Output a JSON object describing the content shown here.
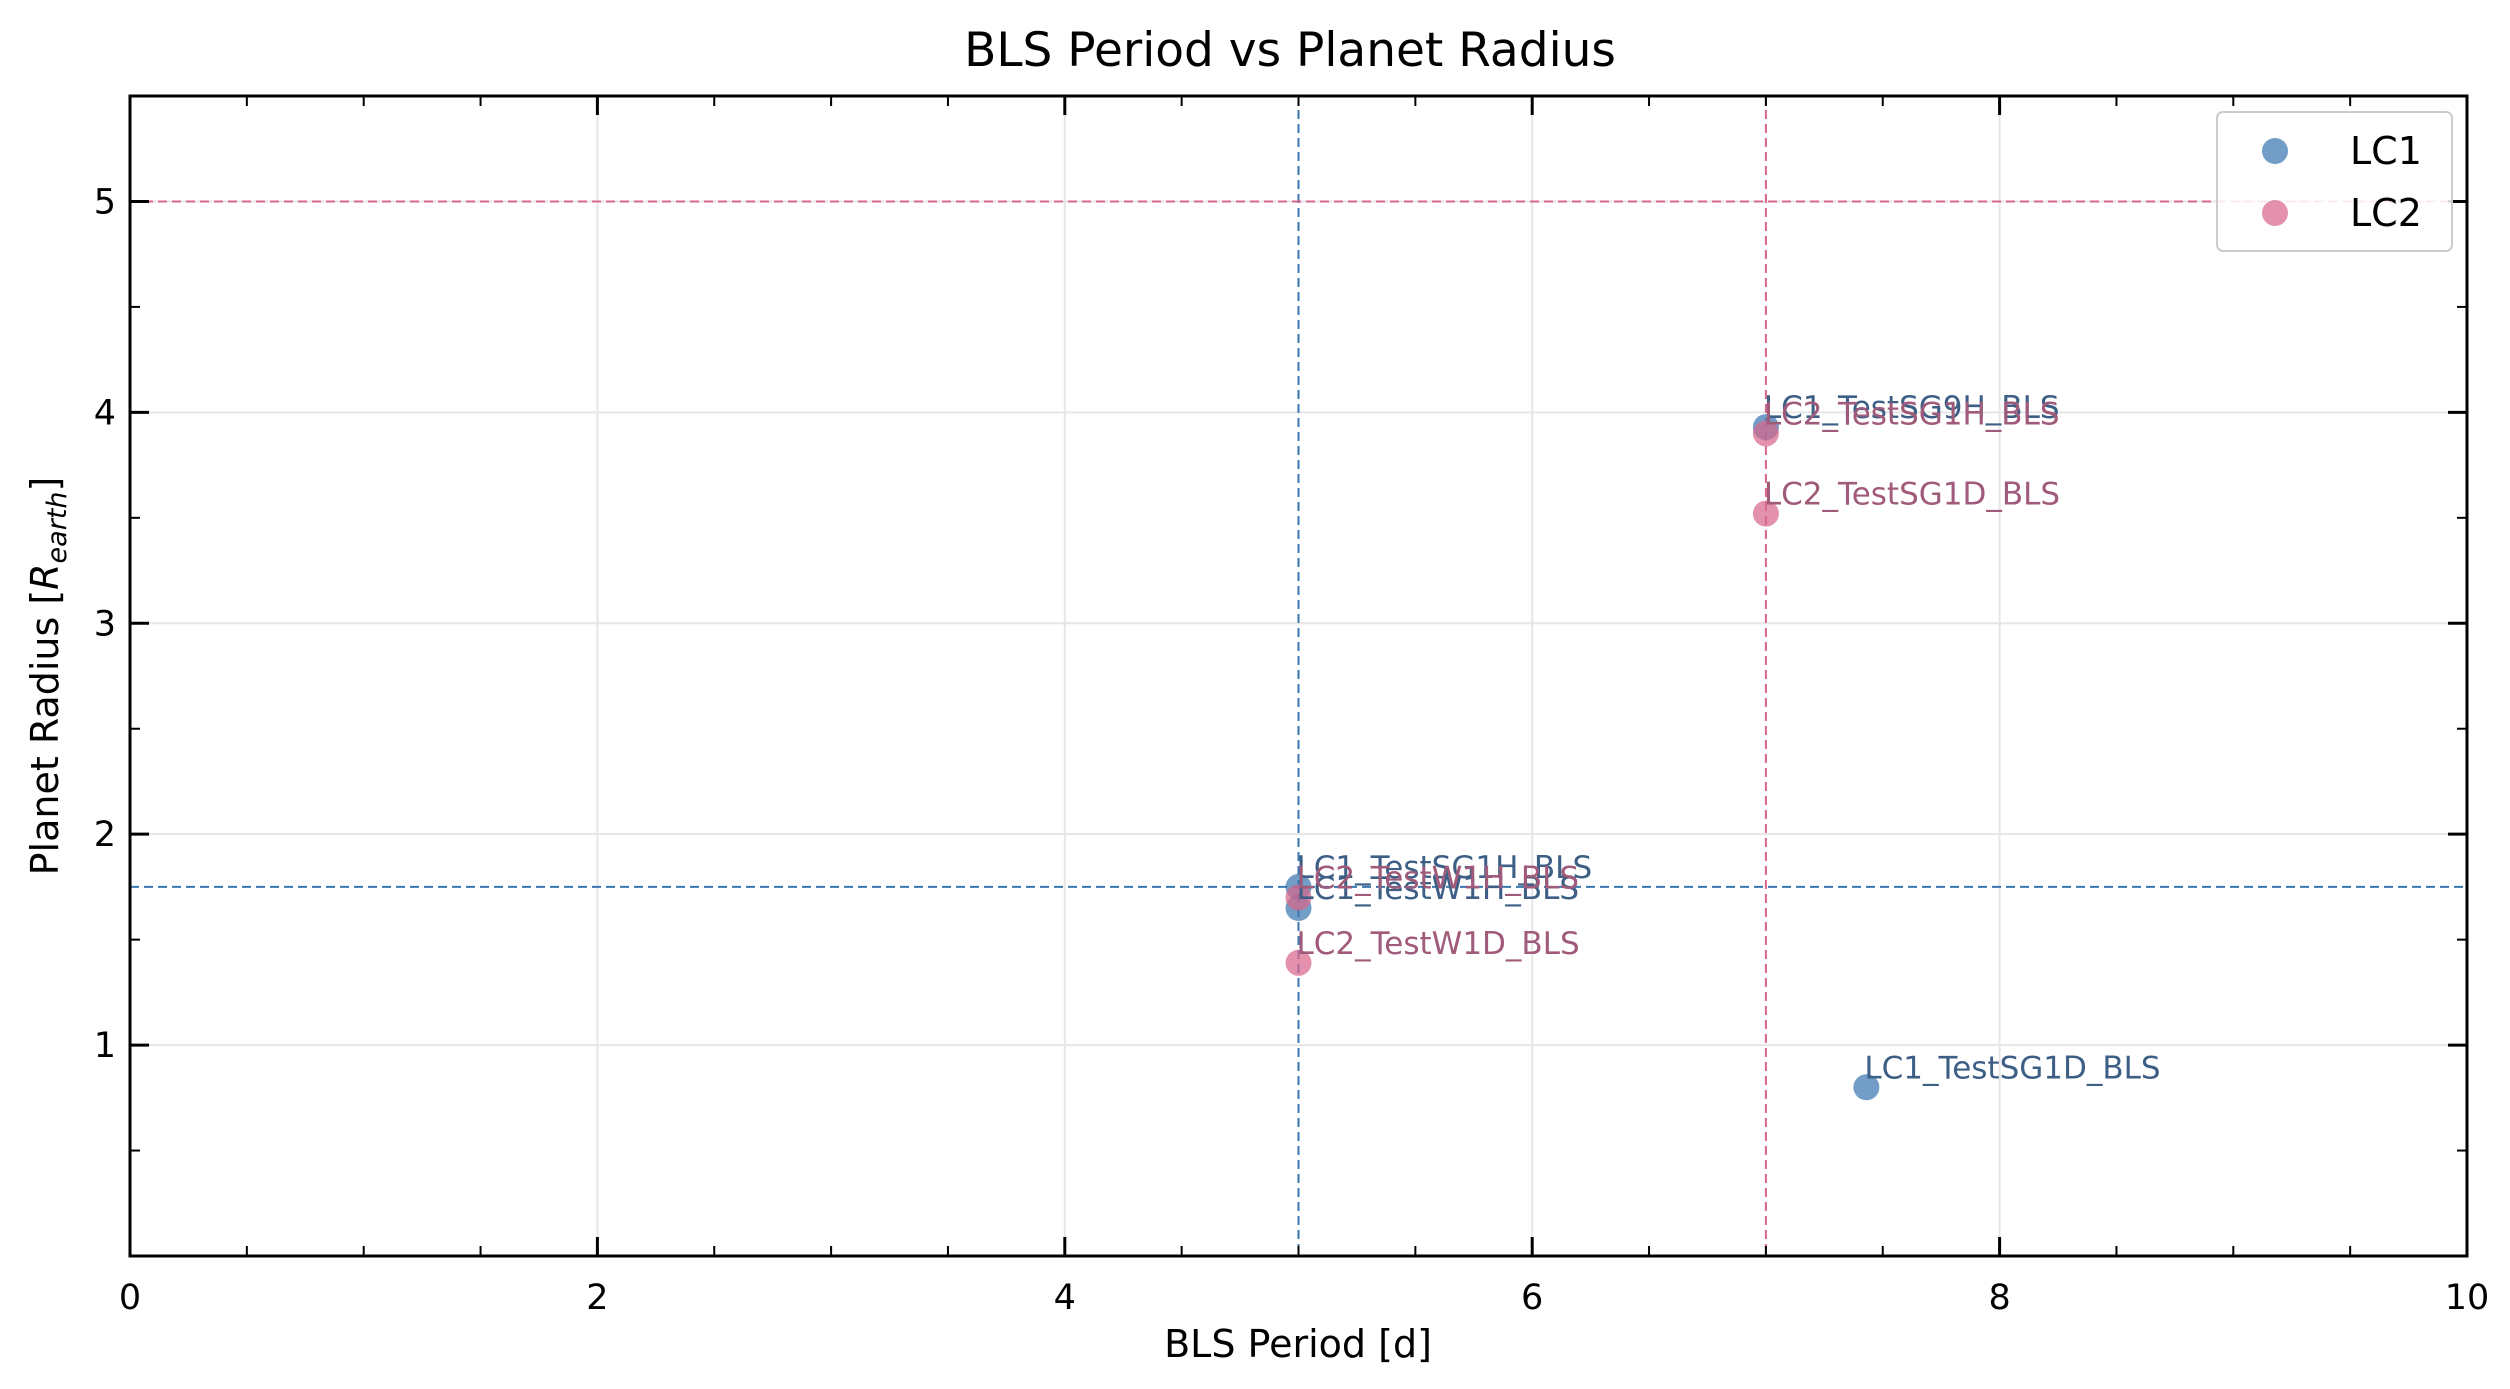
{
  "chart_data": {
    "type": "scatter",
    "title": "BLS Period vs Planet Radius",
    "xlabel": "BLS Period [d]",
    "ylabel_prefix": "Planet Radius [",
    "ylabel_symbol": "R",
    "ylabel_subscript": "earth",
    "ylabel_suffix": "]",
    "xlim": [
      0,
      10
    ],
    "ylim": [
      0,
      5.5
    ],
    "xticks": [
      0,
      2,
      4,
      6,
      8,
      10
    ],
    "yticks": [
      1,
      2,
      3,
      4,
      5
    ],
    "grid": true,
    "legend_position": "top-right",
    "series": [
      {
        "name": "LC1",
        "color": "#3a77b0",
        "text_color": "#3d5f85",
        "points": [
          {
            "x": 7.0,
            "y": 3.93,
            "label": "LC1_TestSG9H_BLS"
          },
          {
            "x": 5.0,
            "y": 1.75,
            "label": "LC1_TestSG1H_BLS"
          },
          {
            "x": 5.0,
            "y": 1.65,
            "label": "LC1_TestW1H_BLS"
          },
          {
            "x": 7.43,
            "y": 0.8,
            "label": "LC1_TestSG1D_BLS"
          }
        ]
      },
      {
        "name": "LC2",
        "color": "#d8668c",
        "text_color": "#a05a7a",
        "points": [
          {
            "x": 7.0,
            "y": 3.9,
            "label": "LC2_TestSG1H_BLS"
          },
          {
            "x": 7.0,
            "y": 3.52,
            "label": "LC2_TestSG1D_BLS"
          },
          {
            "x": 5.0,
            "y": 1.7,
            "label": "LC2_TestW1H_BLS"
          },
          {
            "x": 5.0,
            "y": 1.39,
            "label": "LC2_TestW1D_BLS"
          }
        ]
      }
    ],
    "reference_lines": [
      {
        "orientation": "vertical",
        "value": 5.0,
        "color": "#3a77b0"
      },
      {
        "orientation": "horizontal",
        "value": 1.75,
        "color": "#3a77b0"
      },
      {
        "orientation": "vertical",
        "value": 7.0,
        "color": "#d8668c"
      },
      {
        "orientation": "horizontal",
        "value": 5.0,
        "color": "#d8668c"
      }
    ]
  }
}
